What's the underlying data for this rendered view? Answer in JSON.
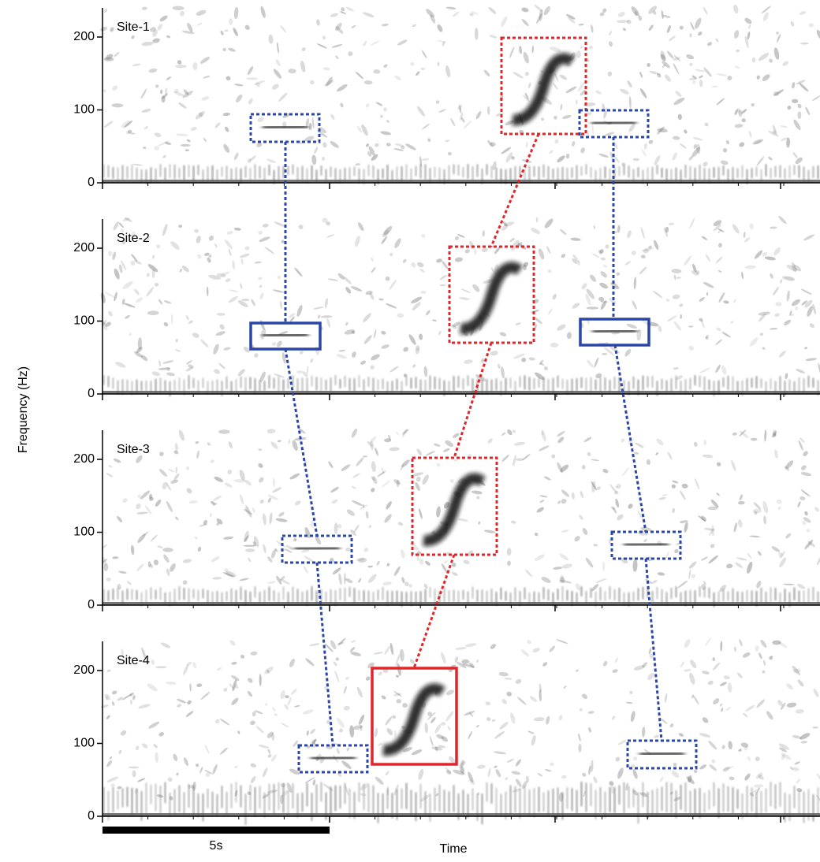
{
  "chart_data": [
    {
      "type": "spectrogram",
      "label": "Site-1",
      "ylim": [
        0,
        240
      ],
      "yticks": [
        0,
        100,
        200
      ]
    },
    {
      "type": "spectrogram",
      "label": "Site-2",
      "ylim": [
        0,
        240
      ],
      "yticks": [
        0,
        100,
        200
      ]
    },
    {
      "type": "spectrogram",
      "label": "Site-3",
      "ylim": [
        0,
        240
      ],
      "yticks": [
        0,
        100,
        200
      ]
    },
    {
      "type": "spectrogram",
      "label": "Site-4",
      "ylim": [
        0,
        240
      ],
      "yticks": [
        0,
        100,
        200
      ]
    }
  ],
  "ylabel": "Frequency (Hz)",
  "xlabel": "Time",
  "scale_bar_label": "5s"
}
